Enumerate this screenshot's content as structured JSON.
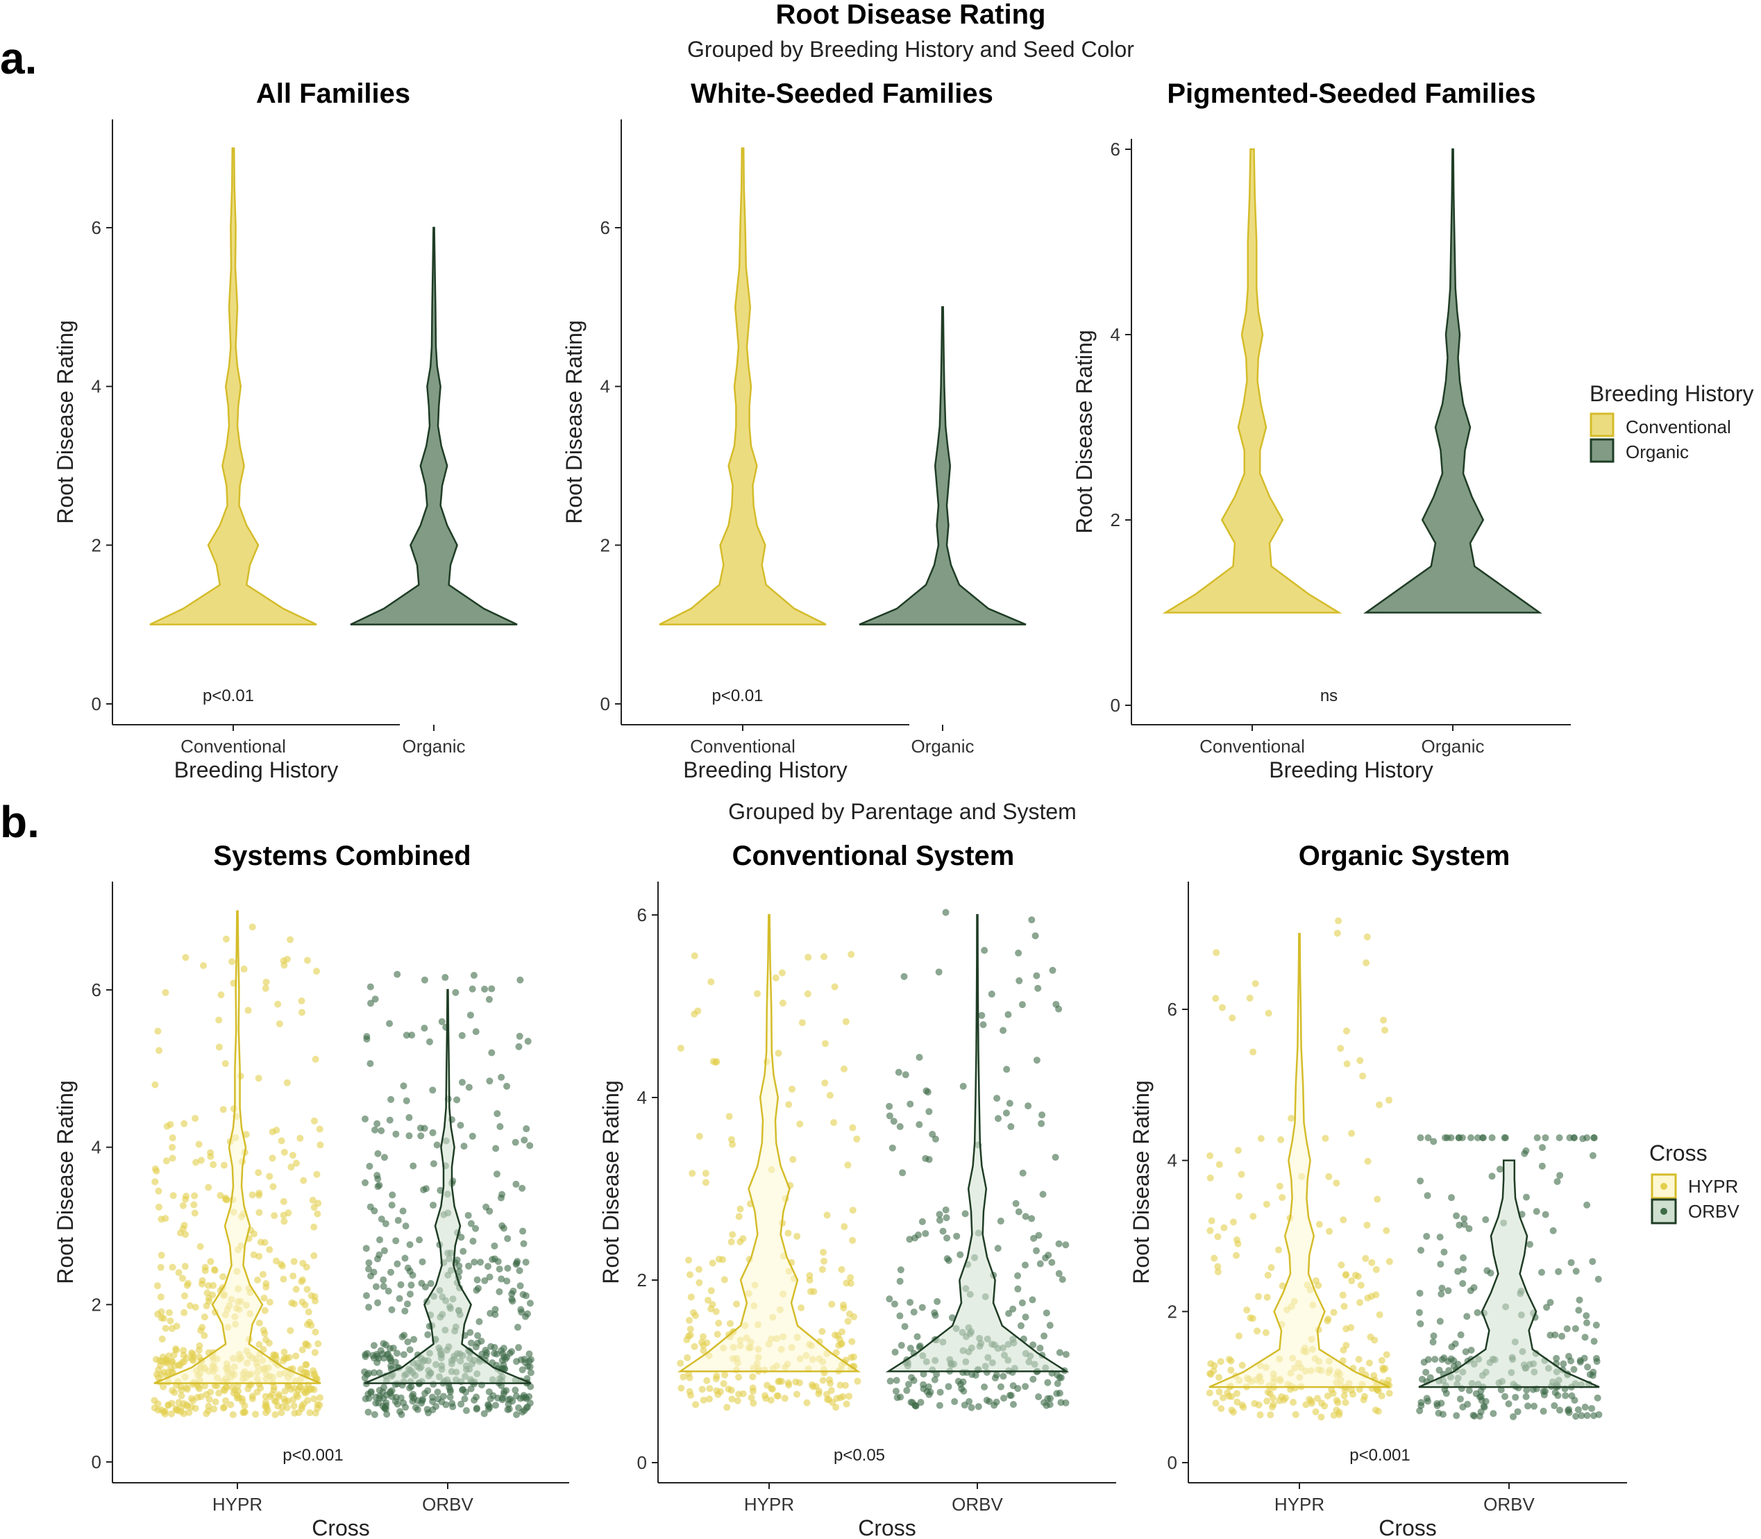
{
  "figure": {
    "main_title": "Root Disease Rating",
    "subtitle_a": "Grouped by Breeding History and Seed Color",
    "subtitle_b": "Grouped by Parentage and System",
    "label_a": "a.",
    "label_b": "b.",
    "legend_a": {
      "title": "Breeding History",
      "items": [
        "Conventional",
        "Organic"
      ]
    },
    "legend_b": {
      "title": "Cross",
      "items": [
        "HYPR",
        "ORBV"
      ]
    },
    "colors": {
      "yellow_fill": "#ecdc80",
      "yellow_line": "#d4bc2a",
      "green_fill": "#819b85",
      "green_line": "#1f3d25",
      "yellow_light_fill": "#fdf7d2",
      "green_light_fill": "#cfe0d0",
      "yellow_point": "#e3cf4d",
      "green_point": "#3d6a47"
    }
  },
  "chart_data": [
    {
      "type": "violin",
      "title": "All Families",
      "xlabel": "Breeding History",
      "ylabel": "Root Disease Rating",
      "ylim": [
        0,
        7.0
      ],
      "yticks": [
        "0",
        "2",
        "4",
        "6"
      ],
      "categories": [
        "Conventional",
        "Organic"
      ],
      "annotation": "p<0.01",
      "points": false,
      "series": [
        {
          "name": "Conventional",
          "min": 1,
          "max": 7,
          "density": [
            [
              1,
              1.0
            ],
            [
              1.2,
              0.6
            ],
            [
              1.5,
              0.16
            ],
            [
              1.75,
              0.2
            ],
            [
              2,
              0.3
            ],
            [
              2.25,
              0.16
            ],
            [
              2.5,
              0.07
            ],
            [
              2.75,
              0.08
            ],
            [
              3,
              0.13
            ],
            [
              3.25,
              0.08
            ],
            [
              3.5,
              0.05
            ],
            [
              3.75,
              0.06
            ],
            [
              4,
              0.09
            ],
            [
              4.25,
              0.05
            ],
            [
              4.5,
              0.03
            ],
            [
              5,
              0.05
            ],
            [
              5.5,
              0.025
            ],
            [
              6,
              0.03
            ],
            [
              6.5,
              0.015
            ],
            [
              7,
              0.01
            ]
          ]
        },
        {
          "name": "Organic",
          "min": 1,
          "max": 6,
          "density": [
            [
              1,
              1.0
            ],
            [
              1.2,
              0.6
            ],
            [
              1.5,
              0.18
            ],
            [
              1.75,
              0.2
            ],
            [
              2,
              0.28
            ],
            [
              2.25,
              0.16
            ],
            [
              2.5,
              0.08
            ],
            [
              2.75,
              0.1
            ],
            [
              3,
              0.16
            ],
            [
              3.25,
              0.09
            ],
            [
              3.5,
              0.05
            ],
            [
              3.75,
              0.06
            ],
            [
              4,
              0.08
            ],
            [
              4.25,
              0.04
            ],
            [
              4.5,
              0.025
            ],
            [
              5,
              0.02
            ],
            [
              5.5,
              0.012
            ],
            [
              6,
              0.005
            ]
          ]
        }
      ]
    },
    {
      "type": "violin",
      "title": "White-Seeded Families",
      "xlabel": "Breeding History",
      "ylabel": "Root Disease Rating",
      "ylim": [
        0,
        7.0
      ],
      "yticks": [
        "0",
        "2",
        "4",
        "6"
      ],
      "categories": [
        "Conventional",
        "Organic"
      ],
      "annotation": "p<0.01",
      "points": false,
      "series": [
        {
          "name": "Conventional",
          "min": 1,
          "max": 7,
          "density": [
            [
              1,
              1.0
            ],
            [
              1.2,
              0.62
            ],
            [
              1.5,
              0.28
            ],
            [
              1.75,
              0.23
            ],
            [
              2,
              0.27
            ],
            [
              2.25,
              0.17
            ],
            [
              2.5,
              0.13
            ],
            [
              2.75,
              0.12
            ],
            [
              3,
              0.17
            ],
            [
              3.25,
              0.1
            ],
            [
              3.5,
              0.08
            ],
            [
              3.75,
              0.08
            ],
            [
              4,
              0.1
            ],
            [
              4.25,
              0.07
            ],
            [
              4.5,
              0.05
            ],
            [
              5,
              0.09
            ],
            [
              5.5,
              0.04
            ],
            [
              6,
              0.03
            ],
            [
              6.5,
              0.015
            ],
            [
              7,
              0.01
            ]
          ]
        },
        {
          "name": "Organic",
          "min": 1,
          "max": 5,
          "density": [
            [
              1,
              1.0
            ],
            [
              1.2,
              0.55
            ],
            [
              1.5,
              0.2
            ],
            [
              1.75,
              0.1
            ],
            [
              2,
              0.05
            ],
            [
              2.25,
              0.07
            ],
            [
              2.5,
              0.05
            ],
            [
              2.75,
              0.07
            ],
            [
              3,
              0.09
            ],
            [
              3.25,
              0.06
            ],
            [
              3.5,
              0.035
            ],
            [
              4,
              0.02
            ],
            [
              4.5,
              0.012
            ],
            [
              5,
              0.006
            ]
          ]
        }
      ]
    },
    {
      "type": "violin",
      "title": "Pigmented-Seeded Families",
      "xlabel": "Breeding History",
      "ylabel": "Root Disease Rating",
      "ylim": [
        0,
        6.2
      ],
      "yticks": [
        "0",
        "2",
        "4",
        "6"
      ],
      "categories": [
        "Conventional",
        "Organic"
      ],
      "annotation": "ns",
      "points": false,
      "series": [
        {
          "name": "Conventional",
          "min": 1,
          "max": 6,
          "density": [
            [
              1,
              1.0
            ],
            [
              1.2,
              0.65
            ],
            [
              1.5,
              0.22
            ],
            [
              1.75,
              0.2
            ],
            [
              2,
              0.35
            ],
            [
              2.25,
              0.2
            ],
            [
              2.5,
              0.09
            ],
            [
              2.75,
              0.09
            ],
            [
              3,
              0.16
            ],
            [
              3.25,
              0.1
            ],
            [
              3.5,
              0.06
            ],
            [
              3.75,
              0.07
            ],
            [
              4,
              0.12
            ],
            [
              4.25,
              0.07
            ],
            [
              4.5,
              0.05
            ],
            [
              5,
              0.05
            ],
            [
              5.5,
              0.03
            ],
            [
              6,
              0.02
            ]
          ]
        },
        {
          "name": "Organic",
          "min": 1,
          "max": 6,
          "density": [
            [
              1,
              1.0
            ],
            [
              1.2,
              0.7
            ],
            [
              1.5,
              0.25
            ],
            [
              1.75,
              0.2
            ],
            [
              2,
              0.35
            ],
            [
              2.25,
              0.22
            ],
            [
              2.5,
              0.12
            ],
            [
              2.75,
              0.14
            ],
            [
              3,
              0.2
            ],
            [
              3.25,
              0.12
            ],
            [
              3.5,
              0.08
            ],
            [
              3.75,
              0.06
            ],
            [
              4,
              0.08
            ],
            [
              4.25,
              0.05
            ],
            [
              4.5,
              0.03
            ],
            [
              5,
              0.02
            ],
            [
              5.5,
              0.01
            ],
            [
              6,
              0.005
            ]
          ]
        }
      ]
    },
    {
      "type": "violin",
      "title": "Systems Combined",
      "xlabel": "Cross",
      "ylabel": "Root Disease Rating",
      "ylim": [
        -0.25,
        7.0
      ],
      "yticks": [
        "0",
        "2",
        "4",
        "6"
      ],
      "categories": [
        "HYPR",
        "ORBV"
      ],
      "annotation": "p<0.001",
      "points": true,
      "series": [
        {
          "name": "HYPR",
          "min": 1,
          "max": 7,
          "density": [
            [
              1,
              1.0
            ],
            [
              1.2,
              0.55
            ],
            [
              1.5,
              0.14
            ],
            [
              1.75,
              0.18
            ],
            [
              2,
              0.3
            ],
            [
              2.25,
              0.15
            ],
            [
              2.5,
              0.07
            ],
            [
              2.75,
              0.09
            ],
            [
              3,
              0.15
            ],
            [
              3.25,
              0.08
            ],
            [
              3.5,
              0.05
            ],
            [
              3.75,
              0.06
            ],
            [
              4,
              0.1
            ],
            [
              4.25,
              0.05
            ],
            [
              4.5,
              0.03
            ],
            [
              5,
              0.03
            ],
            [
              5.5,
              0.015
            ],
            [
              6,
              0.02
            ],
            [
              6.5,
              0.01
            ],
            [
              7,
              0.005
            ]
          ]
        },
        {
          "name": "ORBV",
          "min": 1,
          "max": 6,
          "density": [
            [
              1,
              1.0
            ],
            [
              1.2,
              0.55
            ],
            [
              1.5,
              0.17
            ],
            [
              1.75,
              0.2
            ],
            [
              2,
              0.28
            ],
            [
              2.25,
              0.14
            ],
            [
              2.5,
              0.07
            ],
            [
              2.75,
              0.09
            ],
            [
              3,
              0.15
            ],
            [
              3.25,
              0.08
            ],
            [
              3.5,
              0.05
            ],
            [
              3.75,
              0.05
            ],
            [
              4,
              0.08
            ],
            [
              4.25,
              0.04
            ],
            [
              4.5,
              0.02
            ],
            [
              5,
              0.015
            ],
            [
              5.5,
              0.008
            ],
            [
              6,
              0.004
            ]
          ]
        }
      ],
      "point_range": [
        [
          0.6,
          6.9
        ],
        [
          0.6,
          6.3
        ]
      ]
    },
    {
      "type": "violin",
      "title": "Conventional System",
      "xlabel": "Cross",
      "ylabel": "Root Disease Rating",
      "ylim": [
        -0.25,
        6.15
      ],
      "yticks": [
        "0",
        "2",
        "4",
        "6"
      ],
      "categories": [
        "HYPR",
        "ORBV"
      ],
      "annotation": "p<0.05",
      "points": true,
      "series": [
        {
          "name": "HYPR",
          "min": 1,
          "max": 6,
          "density": [
            [
              1,
              1.0
            ],
            [
              1.2,
              0.7
            ],
            [
              1.5,
              0.32
            ],
            [
              1.75,
              0.25
            ],
            [
              2,
              0.32
            ],
            [
              2.25,
              0.2
            ],
            [
              2.5,
              0.13
            ],
            [
              2.75,
              0.16
            ],
            [
              3,
              0.23
            ],
            [
              3.25,
              0.13
            ],
            [
              3.5,
              0.08
            ],
            [
              3.75,
              0.07
            ],
            [
              4,
              0.1
            ],
            [
              4.25,
              0.05
            ],
            [
              4.5,
              0.03
            ],
            [
              5,
              0.025
            ],
            [
              5.5,
              0.012
            ],
            [
              6,
              0.005
            ]
          ]
        },
        {
          "name": "ORBV",
          "min": 1,
          "max": 6,
          "density": [
            [
              1,
              1.0
            ],
            [
              1.2,
              0.68
            ],
            [
              1.5,
              0.28
            ],
            [
              1.75,
              0.18
            ],
            [
              2,
              0.2
            ],
            [
              2.25,
              0.11
            ],
            [
              2.5,
              0.06
            ],
            [
              2.75,
              0.07
            ],
            [
              3,
              0.1
            ],
            [
              3.25,
              0.05
            ],
            [
              3.5,
              0.03
            ],
            [
              4,
              0.02
            ],
            [
              4.5,
              0.012
            ],
            [
              5,
              0.008
            ],
            [
              5.5,
              0.005
            ],
            [
              6,
              0.004
            ]
          ]
        }
      ],
      "point_range": [
        [
          0.6,
          5.8
        ],
        [
          0.6,
          6.05
        ]
      ]
    },
    {
      "type": "violin",
      "title": "Organic System",
      "xlabel": "Cross",
      "ylabel": "Root Disease Rating",
      "ylim": [
        -0.25,
        7.5
      ],
      "yticks": [
        "0",
        "2",
        "4",
        "6"
      ],
      "categories": [
        "HYPR",
        "ORBV"
      ],
      "annotation": "p<0.001",
      "points": true,
      "series": [
        {
          "name": "HYPR",
          "min": 1,
          "max": 7,
          "density": [
            [
              1,
              1.0
            ],
            [
              1.2,
              0.62
            ],
            [
              1.5,
              0.22
            ],
            [
              1.75,
              0.2
            ],
            [
              2,
              0.28
            ],
            [
              2.25,
              0.18
            ],
            [
              2.5,
              0.1
            ],
            [
              2.75,
              0.11
            ],
            [
              3,
              0.16
            ],
            [
              3.25,
              0.1
            ],
            [
              3.5,
              0.08
            ],
            [
              3.75,
              0.09
            ],
            [
              4,
              0.12
            ],
            [
              4.25,
              0.08
            ],
            [
              4.5,
              0.05
            ],
            [
              5,
              0.04
            ],
            [
              5.5,
              0.02
            ],
            [
              6,
              0.015
            ],
            [
              6.5,
              0.008
            ],
            [
              7,
              0.005
            ]
          ]
        },
        {
          "name": "ORBV",
          "min": 1,
          "max": 4,
          "density": [
            [
              1,
              1.0
            ],
            [
              1.2,
              0.62
            ],
            [
              1.5,
              0.26
            ],
            [
              1.75,
              0.22
            ],
            [
              2,
              0.3
            ],
            [
              2.25,
              0.2
            ],
            [
              2.5,
              0.12
            ],
            [
              2.75,
              0.17
            ],
            [
              3,
              0.2
            ],
            [
              3.25,
              0.12
            ],
            [
              3.5,
              0.07
            ],
            [
              3.75,
              0.06
            ],
            [
              4,
              0.06
            ]
          ]
        }
      ],
      "point_range": [
        [
          0.6,
          7.3
        ],
        [
          0.6,
          4.3
        ]
      ]
    }
  ]
}
